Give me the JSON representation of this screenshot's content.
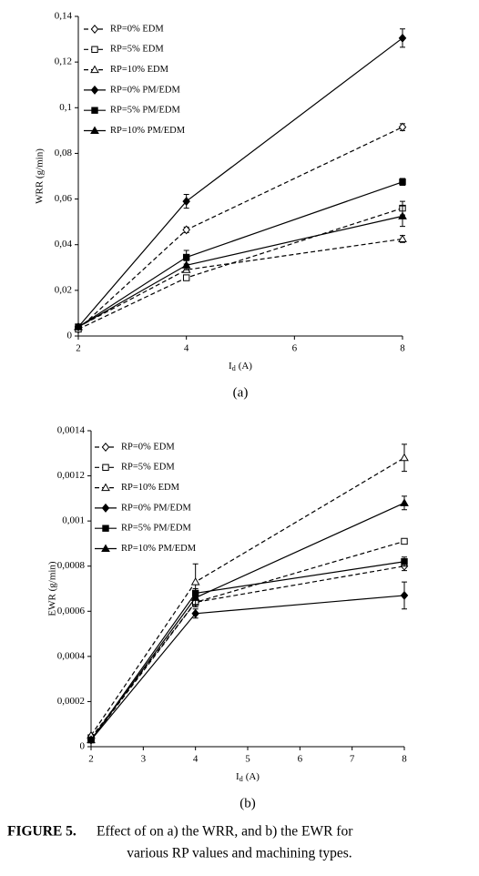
{
  "chart_data": [
    {
      "type": "line",
      "y_label": "WRR (g/min)",
      "x_label": "I",
      "x_label_sub": "d",
      "x_label_unit": "(A)",
      "panel_label": "(a)",
      "x": [
        2,
        4,
        8
      ],
      "xlim": [
        2,
        8
      ],
      "xticks": [
        2,
        4,
        6,
        8
      ],
      "ylim": [
        0,
        0.14
      ],
      "yticks": [
        0,
        {
          "value": 0.02,
          "label": "0,02"
        },
        {
          "value": 0.04,
          "label": "0,04"
        },
        {
          "value": 0.06,
          "label": "0,06"
        },
        {
          "value": 0.08,
          "label": "0,08"
        },
        {
          "value": 0.1,
          "label": "0,1"
        },
        {
          "value": 0.12,
          "label": "0,12"
        },
        {
          "value": 0.14,
          "label": "0,14"
        }
      ],
      "grid": false,
      "legend": "upper left",
      "series": [
        {
          "name": "RP=0% EDM",
          "color": "#000",
          "line_style": "dashed",
          "marker": "diamond",
          "filled": false,
          "values": [
            0.003,
            0.0465,
            0.0915
          ],
          "errors": [
            0,
            0.0012,
            0.0015
          ]
        },
        {
          "name": "RP=5% EDM",
          "color": "#000",
          "line_style": "dashed",
          "marker": "square",
          "filled": false,
          "values": [
            0.003,
            0.0255,
            0.056
          ],
          "errors": [
            0,
            0.001,
            0.003
          ]
        },
        {
          "name": "RP=10% EDM",
          "color": "#000",
          "line_style": "dashed",
          "marker": "triangle",
          "filled": false,
          "values": [
            0.004,
            0.029,
            0.0425
          ],
          "errors": [
            0,
            0.001,
            0.0015
          ]
        },
        {
          "name": "RP=0% PM/EDM",
          "color": "#000",
          "line_style": "solid",
          "marker": "diamond",
          "filled": true,
          "values": [
            0.004,
            0.059,
            0.1305
          ],
          "errors": [
            0,
            0.003,
            0.004
          ]
        },
        {
          "name": "RP=5% PM/EDM",
          "color": "#000",
          "line_style": "solid",
          "marker": "square",
          "filled": true,
          "values": [
            0.004,
            0.0345,
            0.0675
          ],
          "errors": [
            0,
            0.003,
            0.0015
          ]
        },
        {
          "name": "RP=10% PM/EDM",
          "color": "#000",
          "line_style": "solid",
          "marker": "triangle",
          "filled": true,
          "values": [
            0.004,
            0.031,
            0.0525
          ],
          "errors": [
            0,
            0.002,
            0.0045
          ]
        }
      ]
    },
    {
      "type": "line",
      "y_label": "EWR (g/min)",
      "x_label": "I",
      "x_label_sub": "d",
      "x_label_unit": "(A)",
      "panel_label": "(b)",
      "x": [
        2,
        4,
        8
      ],
      "xlim": [
        2,
        8
      ],
      "xticks": [
        2,
        3,
        4,
        5,
        6,
        7,
        8
      ],
      "ylim": [
        0,
        0.0014
      ],
      "yticks": [
        0,
        {
          "value": 0.0002,
          "label": "0,0002"
        },
        {
          "value": 0.0004,
          "label": "0,0004"
        },
        {
          "value": 0.0006,
          "label": "0,0006"
        },
        {
          "value": 0.0008,
          "label": "0,0008"
        },
        {
          "value": 0.001,
          "label": "0,001"
        },
        {
          "value": 0.0012,
          "label": "0,0012"
        },
        {
          "value": 0.0014,
          "label": "0,0014"
        }
      ],
      "grid": false,
      "legend": "upper left",
      "series": [
        {
          "name": "RP=0% EDM",
          "color": "#000",
          "line_style": "dashed",
          "marker": "diamond",
          "filled": false,
          "values": [
            3e-05,
            0.00064,
            0.0008
          ],
          "errors": [
            0,
            2e-05,
            2e-05
          ]
        },
        {
          "name": "RP=5% EDM",
          "color": "#000",
          "line_style": "dashed",
          "marker": "square",
          "filled": false,
          "values": [
            4e-05,
            0.00064,
            0.00091
          ],
          "errors": [
            0,
            2e-05,
            1e-05
          ]
        },
        {
          "name": "RP=10% EDM",
          "color": "#000",
          "line_style": "dashed",
          "marker": "triangle",
          "filled": false,
          "values": [
            5e-05,
            0.00073,
            0.00128
          ],
          "errors": [
            0,
            8e-05,
            6e-05
          ]
        },
        {
          "name": "RP=0% PM/EDM",
          "color": "#000",
          "line_style": "solid",
          "marker": "diamond",
          "filled": true,
          "values": [
            3e-05,
            0.00059,
            0.00067
          ],
          "errors": [
            0,
            2e-05,
            6e-05
          ]
        },
        {
          "name": "RP=5% PM/EDM",
          "color": "#000",
          "line_style": "solid",
          "marker": "square",
          "filled": true,
          "values": [
            3e-05,
            0.00068,
            0.00082
          ],
          "errors": [
            0,
            2e-05,
            2e-05
          ]
        },
        {
          "name": "RP=10% PM/EDM",
          "color": "#000",
          "line_style": "solid",
          "marker": "triangle",
          "filled": true,
          "values": [
            3e-05,
            0.00066,
            0.00108
          ],
          "errors": [
            0,
            3e-05,
            3e-05
          ]
        }
      ]
    }
  ],
  "caption": {
    "label": "FIGURE 5.",
    "line1": "Effect of  on a) the WRR, and b) the EWR for",
    "line2": "various RP values and machining types."
  }
}
